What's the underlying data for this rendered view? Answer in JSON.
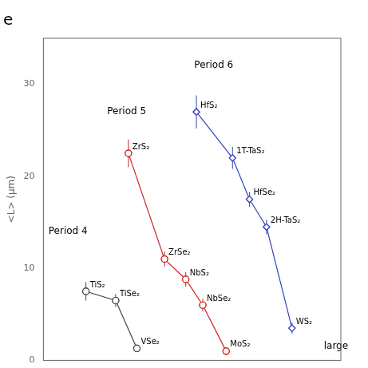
{
  "chart_data": {
    "type": "line",
    "title": "e",
    "ylabel": "<L> (μm)",
    "xlim": [
      0.0,
      7.0
    ],
    "xticks": [],
    "ylim": [
      0,
      35
    ],
    "yticks": [
      0,
      10,
      20,
      30
    ],
    "grid": false,
    "tick_labels": "y",
    "series": [
      {
        "color": "#444444",
        "marker": "circle",
        "x": [
          1.0,
          1.7,
          2.2
        ],
        "values": [
          7.5,
          6.5,
          1.3
        ],
        "errors": [
          1.0,
          0.7,
          0.4
        ],
        "point_labels": [
          "TiS₂",
          "TiSe₂",
          "VSe₂"
        ]
      },
      {
        "color": "#cc2222",
        "marker": "circle",
        "x": [
          2.0,
          2.85,
          3.35,
          3.75,
          4.3
        ],
        "values": [
          22.5,
          11.0,
          8.8,
          6.0,
          1.0
        ],
        "errors": [
          1.5,
          0.8,
          0.8,
          0.7,
          0.4
        ],
        "point_labels": [
          "ZrS₂",
          "ZrSe₂",
          "NbS₂",
          "NbSe₂",
          "MoS₂"
        ]
      },
      {
        "color": "#3344bb",
        "marker": "diamond",
        "x": [
          3.6,
          4.45,
          4.85,
          5.25,
          5.85
        ],
        "values": [
          27.0,
          22.0,
          17.5,
          14.5,
          3.5
        ],
        "errors": [
          1.8,
          1.2,
          0.8,
          0.8,
          0.6
        ],
        "point_labels": [
          "HfS₂",
          "1T-TaS₂",
          "HfSe₂",
          "2H-TaS₂",
          "WS₂"
        ]
      }
    ],
    "annotations": [
      {
        "text": "Period 4",
        "x": 0.12,
        "y": 13.5
      },
      {
        "text": "Period 5",
        "x": 1.5,
        "y": 26.5
      },
      {
        "text": "Period 6",
        "x": 3.55,
        "y": 31.5
      },
      {
        "text": "large",
        "x": 6.6,
        "y": 1.0
      }
    ]
  }
}
